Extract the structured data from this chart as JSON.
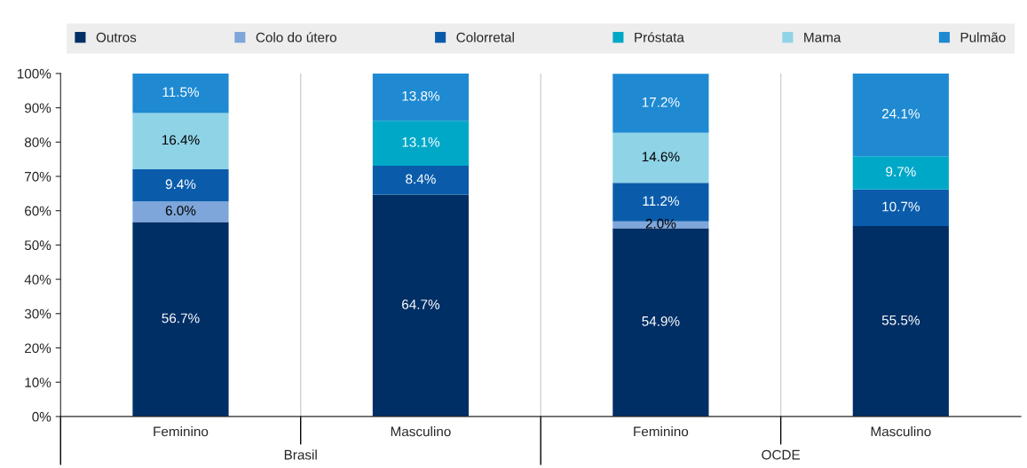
{
  "chart_data": {
    "type": "bar",
    "stacked": true,
    "categories": [
      "Feminino",
      "Masculino",
      "Feminino",
      "Masculino"
    ],
    "series": [
      {
        "name": "Outros",
        "color": "#002f66",
        "values": [
          56.7,
          64.7,
          54.9,
          55.5
        ],
        "value_labels": [
          "56.7%",
          "64.7%",
          "54.9%",
          "55.5%"
        ]
      },
      {
        "name": "Colo do útero",
        "color": "#7ea6da",
        "values": [
          6.0,
          null,
          2.0,
          null
        ],
        "value_labels": [
          "6.0%",
          null,
          "2.0%",
          null
        ]
      },
      {
        "name": "Colorretal",
        "color": "#0a5cab",
        "values": [
          9.4,
          8.4,
          11.2,
          10.7
        ],
        "value_labels": [
          "9.4%",
          "8.4%",
          "11.2%",
          "10.7%"
        ]
      },
      {
        "name": "Próstata",
        "color": "#00a8c8",
        "values": [
          null,
          13.1,
          null,
          9.7
        ],
        "value_labels": [
          null,
          "13.1%",
          null,
          "9.7%"
        ]
      },
      {
        "name": "Mama",
        "color": "#8fd3e7",
        "values": [
          16.4,
          null,
          14.6,
          null
        ],
        "value_labels": [
          "16.4%",
          null,
          "14.6%",
          null
        ]
      },
      {
        "name": "Pulmão",
        "color": "#1f8ad2",
        "values": [
          11.5,
          13.8,
          17.2,
          24.1
        ],
        "value_labels": [
          "11.5%",
          "13.8%",
          "17.2%",
          "24.1%"
        ]
      }
    ],
    "ylim": [
      0,
      100
    ],
    "yticks": [
      {
        "value": 0,
        "label": "0%"
      },
      {
        "value": 10,
        "label": "10%"
      },
      {
        "value": 20,
        "label": "20%"
      },
      {
        "value": 30,
        "label": "30%"
      },
      {
        "value": 40,
        "label": "40%"
      },
      {
        "value": 50,
        "label": "50%"
      },
      {
        "value": 60,
        "label": "60%"
      },
      {
        "value": 70,
        "label": "70%"
      },
      {
        "value": 80,
        "label": "80%"
      },
      {
        "value": 90,
        "label": "90%"
      },
      {
        "value": 100,
        "label": "100%"
      }
    ],
    "annotations": [
      "Brasil",
      "OCDE"
    ],
    "grid": "x",
    "legend": "top"
  }
}
